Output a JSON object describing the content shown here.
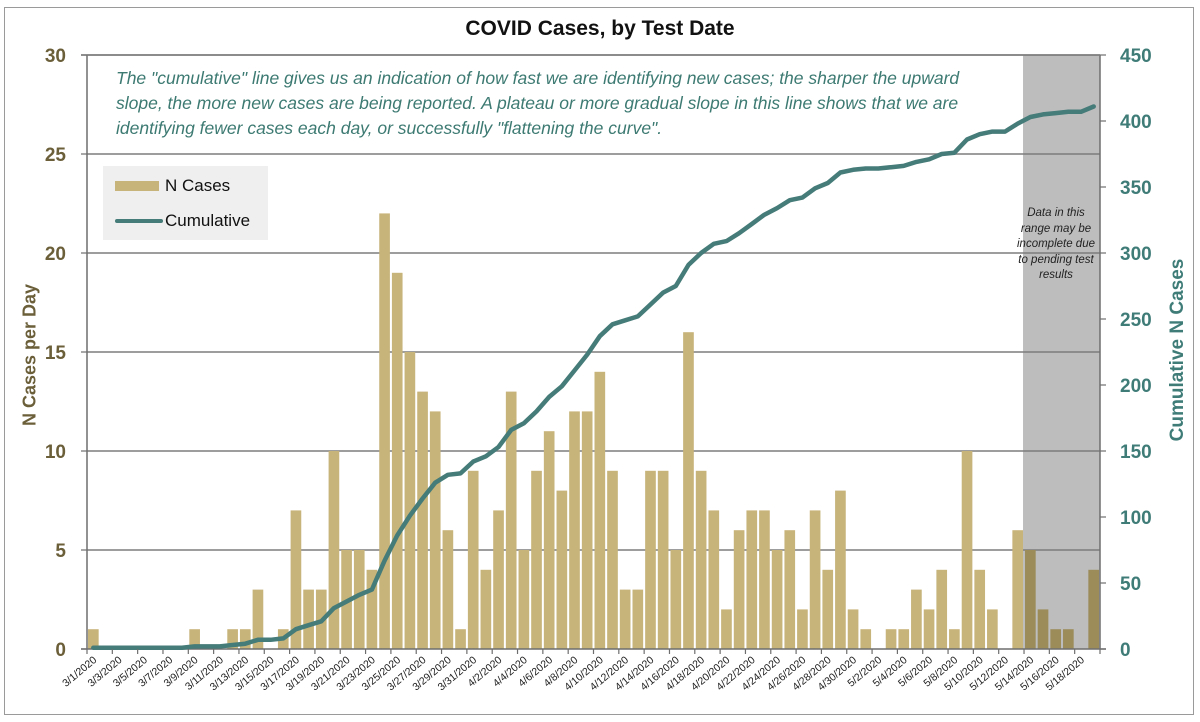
{
  "chart_data": {
    "type": "bar",
    "title": "COVID Cases, by Test Date",
    "xlabel": "",
    "ylabel": "N Cases per Day",
    "y2label": "Cumulative N Cases",
    "ylim": [
      0,
      30
    ],
    "y2lim": [
      0,
      450
    ],
    "yticks": [
      "0",
      "5",
      "10",
      "15",
      "20",
      "25",
      "30"
    ],
    "y2ticks": [
      "0",
      "50",
      "100",
      "150",
      "200",
      "250",
      "300",
      "350",
      "400",
      "450"
    ],
    "grid": true,
    "legend_position": "top-left",
    "annotation": "The \"cumulative\" line gives  us an indication of how fast we are identifying new cases; the sharper the upward slope, the more new cases are being reported. A plateau or more gradual slope in this line shows that we are identifying fewer cases each day, or successfully \"flattening the curve\".",
    "shaded_region": {
      "from": "5/14/2020",
      "to": "5/19/2020",
      "label": "Data in this range  may be incomplete due to pending test results"
    },
    "categories": [
      "3/1/2020",
      "3/2/2020",
      "3/3/2020",
      "3/4/2020",
      "3/5/2020",
      "3/6/2020",
      "3/7/2020",
      "3/8/2020",
      "3/9/2020",
      "3/10/2020",
      "3/11/2020",
      "3/12/2020",
      "3/13/2020",
      "3/14/2020",
      "3/15/2020",
      "3/16/2020",
      "3/17/2020",
      "3/18/2020",
      "3/19/2020",
      "3/20/2020",
      "3/21/2020",
      "3/22/2020",
      "3/23/2020",
      "3/24/2020",
      "3/25/2020",
      "3/26/2020",
      "3/27/2020",
      "3/28/2020",
      "3/29/2020",
      "3/30/2020",
      "3/31/2020",
      "4/1/2020",
      "4/2/2020",
      "4/3/2020",
      "4/4/2020",
      "4/5/2020",
      "4/6/2020",
      "4/7/2020",
      "4/8/2020",
      "4/9/2020",
      "4/10/2020",
      "4/11/2020",
      "4/12/2020",
      "4/13/2020",
      "4/14/2020",
      "4/15/2020",
      "4/16/2020",
      "4/17/2020",
      "4/18/2020",
      "4/19/2020",
      "4/20/2020",
      "4/21/2020",
      "4/22/2020",
      "4/23/2020",
      "4/24/2020",
      "4/25/2020",
      "4/26/2020",
      "4/27/2020",
      "4/28/2020",
      "4/29/2020",
      "4/30/2020",
      "5/1/2020",
      "5/2/2020",
      "5/3/2020",
      "5/4/2020",
      "5/5/2020",
      "5/6/2020",
      "5/7/2020",
      "5/8/2020",
      "5/9/2020",
      "5/10/2020",
      "5/11/2020",
      "5/12/2020",
      "5/13/2020",
      "5/14/2020",
      "5/15/2020",
      "5/16/2020",
      "5/17/2020",
      "5/18/2020",
      "5/19/2020"
    ],
    "tick_labels": [
      "3/1/2020",
      "3/3/2020",
      "3/5/2020",
      "3/7/2020",
      "3/9/2020",
      "3/11/2020",
      "3/13/2020",
      "3/15/2020",
      "3/17/2020",
      "3/19/2020",
      "3/21/2020",
      "3/23/2020",
      "3/25/2020",
      "3/27/2020",
      "3/29/2020",
      "3/31/2020",
      "4/2/2020",
      "4/4/2020",
      "4/6/2020",
      "4/8/2020",
      "4/10/2020",
      "4/12/2020",
      "4/14/2020",
      "4/16/2020",
      "4/18/2020",
      "4/20/2020",
      "4/22/2020",
      "4/24/2020",
      "4/26/2020",
      "4/28/2020",
      "4/30/2020",
      "5/2/2020",
      "5/4/2020",
      "5/6/2020",
      "5/8/2020",
      "5/10/2020",
      "5/12/2020",
      "5/14/2020",
      "5/16/2020",
      "5/18/2020"
    ],
    "series": [
      {
        "name": "N Cases",
        "type": "bar",
        "axis": "left",
        "color": "#c7b47a",
        "shaded_color": "#9c8c5a",
        "values": [
          1,
          0,
          0,
          0,
          0,
          0,
          0,
          0,
          1,
          0,
          0,
          1,
          1,
          3,
          0,
          1,
          7,
          3,
          3,
          10,
          5,
          5,
          4,
          22,
          19,
          15,
          13,
          12,
          6,
          1,
          9,
          4,
          7,
          13,
          5,
          9,
          11,
          8,
          12,
          12,
          14,
          9,
          3,
          3,
          9,
          9,
          5,
          16,
          9,
          7,
          2,
          6,
          7,
          7,
          5,
          6,
          2,
          7,
          4,
          8,
          2,
          1,
          0,
          1,
          1,
          3,
          2,
          4,
          1,
          10,
          4,
          2,
          0,
          6,
          5,
          2,
          1,
          1,
          0,
          4
        ]
      },
      {
        "name": "Cumulative",
        "type": "line",
        "axis": "right",
        "color": "#457b78",
        "values": "running total of N Cases"
      }
    ]
  }
}
